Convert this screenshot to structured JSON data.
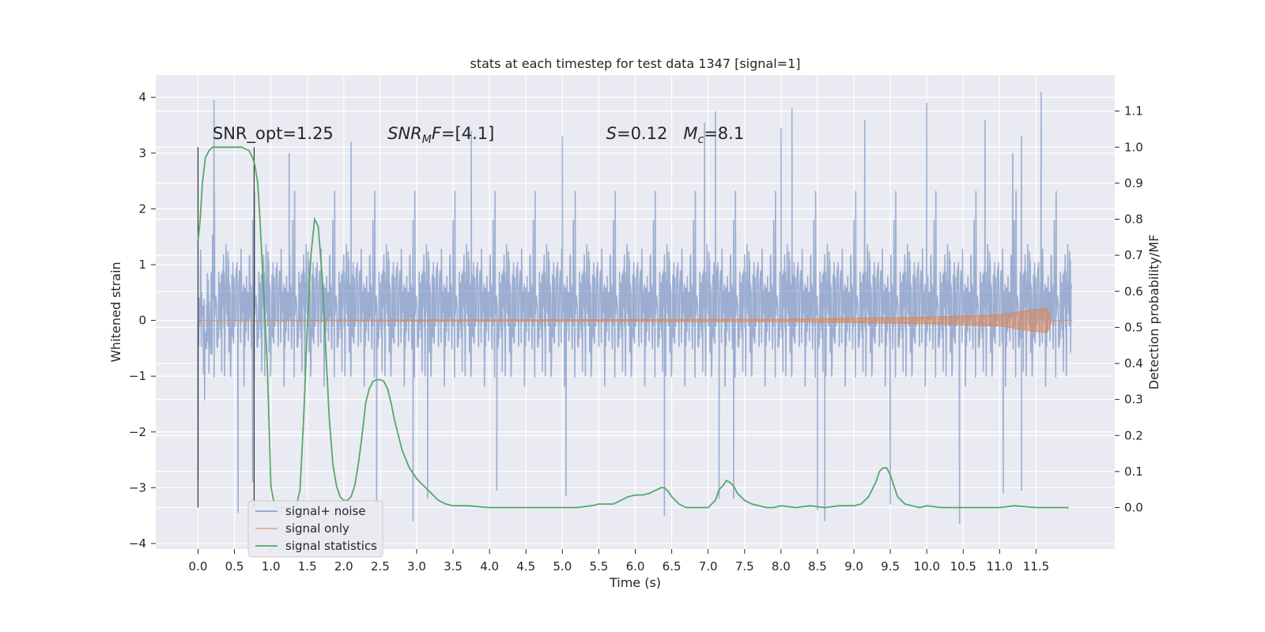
{
  "chart_data": {
    "type": "line",
    "title": "stats at each timestep for test data 1347 [signal=1]",
    "xlabel": "Time (s)",
    "ylabel": "Whitened strain",
    "y2label": "Detection probability/MF",
    "xlim": [
      -0.58,
      12.58
    ],
    "ylim": [
      -4.1,
      4.4
    ],
    "y2lim": [
      -0.115,
      1.2
    ],
    "x_ticks": [
      0.0,
      0.5,
      1.0,
      1.5,
      2.0,
      2.5,
      3.0,
      3.5,
      4.0,
      4.5,
      5.0,
      5.5,
      6.0,
      6.5,
      7.0,
      7.5,
      8.0,
      8.5,
      9.0,
      9.5,
      10.0,
      10.5,
      11.0,
      11.5
    ],
    "x_tick_labels": [
      "0.0",
      "0.5",
      "1.0",
      "1.5",
      "2.0",
      "2.5",
      "3.0",
      "3.5",
      "4.0",
      "4.5",
      "5.0",
      "5.5",
      "6.0",
      "6.5",
      "7.0",
      "7.5",
      "8.0",
      "8.5",
      "9.0",
      "9.5",
      "10.0",
      "10.5",
      "11.0",
      "11.5"
    ],
    "y_ticks": [
      -4,
      -3,
      -2,
      -1,
      0,
      1,
      2,
      3,
      4
    ],
    "y_tick_labels": [
      "−4",
      "−3",
      "−2",
      "−1",
      "0",
      "1",
      "2",
      "3",
      "4"
    ],
    "y2_ticks": [
      0.0,
      0.1,
      0.2,
      0.3,
      0.4,
      0.5,
      0.6,
      0.7,
      0.8,
      0.9,
      1.0,
      1.1
    ],
    "y2_tick_labels": [
      "0.0",
      "0.1",
      "0.2",
      "0.3",
      "0.4",
      "0.5",
      "0.6",
      "0.7",
      "0.8",
      "0.9",
      "1.0",
      "1.1"
    ],
    "grid": true,
    "legend_placement": "lower-left",
    "annotations": [
      {
        "text": "SNR_opt=1.25",
        "x": 0.2,
        "y": 3.25
      },
      {
        "text": "SNR_MF=[4.1]",
        "x": 2.6,
        "y": 3.25
      },
      {
        "text": "S=0.12   M_c=8.1",
        "x": 5.6,
        "y": 3.25
      }
    ],
    "series": [
      {
        "name": "signal+ noise",
        "color": "#4c72b0",
        "axis": "left",
        "description_envelope": "dense noise between about -2.5 and 2.5, spikes up to 4.1 and down to -3.6",
        "x_range": [
          0.0,
          11.99
        ],
        "sample_step": 0.005,
        "peaks_up": [
          [
            0.22,
            3.95
          ],
          [
            1.25,
            3.0
          ],
          [
            2.1,
            3.2
          ],
          [
            3.75,
            3.4
          ],
          [
            5.0,
            3.3
          ],
          [
            6.95,
            3.55
          ],
          [
            7.1,
            3.75
          ],
          [
            8.0,
            3.45
          ],
          [
            8.15,
            3.8
          ],
          [
            9.15,
            3.6
          ],
          [
            10.0,
            3.9
          ],
          [
            10.8,
            3.6
          ],
          [
            11.3,
            3.3
          ],
          [
            11.57,
            4.1
          ],
          [
            11.18,
            3.0
          ]
        ],
        "peaks_down": [
          [
            0.0,
            -2.85
          ],
          [
            0.55,
            -3.45
          ],
          [
            0.75,
            -2.9
          ],
          [
            2.45,
            -3.3
          ],
          [
            2.95,
            -3.6
          ],
          [
            3.15,
            -3.2
          ],
          [
            4.1,
            -3.05
          ],
          [
            5.05,
            -3.15
          ],
          [
            6.4,
            -3.5
          ],
          [
            7.15,
            -3.2
          ],
          [
            7.35,
            -3.2
          ],
          [
            8.5,
            -3.4
          ],
          [
            8.6,
            -3.6
          ],
          [
            9.5,
            -3.3
          ],
          [
            10.45,
            -3.65
          ],
          [
            11.05,
            -3.1
          ],
          [
            11.3,
            -3.05
          ]
        ]
      },
      {
        "name": "signal only",
        "color": "#dd8452",
        "axis": "left",
        "description_envelope": "near zero, growing chirp amplitude toward ~11.6 s",
        "envelope": [
          [
            0.0,
            0.0
          ],
          [
            8.0,
            0.02
          ],
          [
            10.0,
            0.06
          ],
          [
            11.0,
            0.1
          ],
          [
            11.5,
            0.2
          ],
          [
            11.65,
            0.22
          ],
          [
            11.72,
            0.0
          ],
          [
            12.0,
            0.0
          ]
        ]
      },
      {
        "name": "signal statistics",
        "color": "#55a868",
        "axis": "right",
        "x": [
          0.0,
          0.03,
          0.06,
          0.1,
          0.15,
          0.2,
          0.3,
          0.4,
          0.5,
          0.6,
          0.65,
          0.7,
          0.75,
          0.78,
          0.82,
          0.85,
          0.9,
          0.95,
          0.98,
          1.0,
          1.05,
          1.1,
          1.2,
          1.3,
          1.35,
          1.4,
          1.45,
          1.5,
          1.55,
          1.6,
          1.65,
          1.7,
          1.75,
          1.8,
          1.85,
          1.9,
          1.95,
          2.0,
          2.05,
          2.1,
          2.15,
          2.2,
          2.25,
          2.3,
          2.35,
          2.4,
          2.45,
          2.5,
          2.55,
          2.6,
          2.65,
          2.7,
          2.8,
          2.9,
          3.0,
          3.1,
          3.2,
          3.3,
          3.4,
          3.5,
          3.7,
          4.0,
          4.5,
          5.0,
          5.2,
          5.4,
          5.5,
          5.6,
          5.7,
          5.8,
          5.9,
          6.0,
          6.1,
          6.2,
          6.3,
          6.35,
          6.4,
          6.45,
          6.5,
          6.6,
          6.7,
          6.8,
          6.9,
          7.0,
          7.1,
          7.15,
          7.2,
          7.25,
          7.3,
          7.35,
          7.4,
          7.45,
          7.5,
          7.6,
          7.7,
          7.8,
          7.9,
          8.0,
          8.2,
          8.4,
          8.6,
          8.8,
          9.0,
          9.1,
          9.2,
          9.3,
          9.35,
          9.4,
          9.45,
          9.5,
          9.55,
          9.6,
          9.7,
          9.8,
          9.9,
          10.0,
          10.2,
          10.5,
          11.0,
          11.2,
          11.5,
          11.8,
          11.95
        ],
        "values": [
          0.74,
          0.8,
          0.9,
          0.97,
          0.99,
          1.0,
          1.0,
          1.0,
          1.0,
          1.0,
          0.995,
          0.99,
          0.97,
          0.95,
          0.9,
          0.8,
          0.6,
          0.4,
          0.2,
          0.06,
          0.005,
          0.0,
          0.0,
          0.0,
          0.005,
          0.05,
          0.25,
          0.5,
          0.7,
          0.8,
          0.78,
          0.65,
          0.45,
          0.25,
          0.12,
          0.06,
          0.03,
          0.02,
          0.02,
          0.03,
          0.06,
          0.12,
          0.2,
          0.29,
          0.33,
          0.35,
          0.355,
          0.355,
          0.35,
          0.33,
          0.29,
          0.24,
          0.16,
          0.11,
          0.08,
          0.06,
          0.04,
          0.02,
          0.01,
          0.005,
          0.005,
          0.0,
          0.0,
          0.0,
          0.0,
          0.005,
          0.01,
          0.01,
          0.01,
          0.02,
          0.03,
          0.035,
          0.035,
          0.04,
          0.05,
          0.055,
          0.055,
          0.045,
          0.03,
          0.01,
          0.0,
          0.0,
          0.0,
          0.0,
          0.02,
          0.05,
          0.06,
          0.075,
          0.07,
          0.06,
          0.04,
          0.03,
          0.02,
          0.01,
          0.005,
          0.0,
          0.0,
          0.005,
          0.0,
          0.005,
          0.0,
          0.005,
          0.005,
          0.01,
          0.03,
          0.07,
          0.1,
          0.11,
          0.11,
          0.09,
          0.06,
          0.03,
          0.01,
          0.005,
          0.0,
          0.005,
          0.0,
          0.0,
          0.0,
          0.005,
          0.0,
          0.0,
          0.0
        ]
      }
    ],
    "vertical_lines": [
      {
        "x": 0.0,
        "from_y2": 0.0,
        "to_y2": 1.0
      },
      {
        "x": 0.77,
        "from_y2": 0.0,
        "to_y2": 1.0
      }
    ],
    "legend": [
      "signal+ noise",
      "signal only",
      "signal statistics"
    ]
  }
}
